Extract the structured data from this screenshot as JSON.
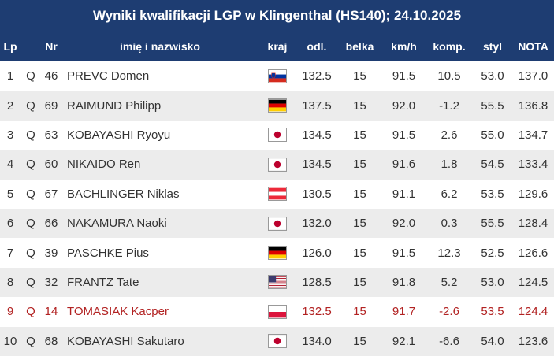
{
  "header": {
    "title": "Wyniki kwalifikacji LGP w Klingenthal (HS140); 24.10.2025"
  },
  "table": {
    "columns": [
      "Lp",
      "Nr",
      "imię i nazwisko",
      "kraj",
      "odl.",
      "belka",
      "km/h",
      "komp.",
      "styl",
      "NOTA"
    ],
    "rows": [
      [
        "1",
        "Q",
        "46",
        "PREVC Domen",
        "132.5",
        "15",
        "91.5",
        "10.5",
        "53.0",
        "137.0"
      ],
      [
        "2",
        "Q",
        "69",
        "RAIMUND Philipp",
        "137.5",
        "15",
        "92.0",
        "-1.2",
        "55.5",
        "136.8"
      ],
      [
        "3",
        "Q",
        "63",
        "KOBAYASHI Ryoyu",
        "134.5",
        "15",
        "91.5",
        "2.6",
        "55.0",
        "134.7"
      ],
      [
        "4",
        "Q",
        "60",
        "NIKAIDO Ren",
        "134.5",
        "15",
        "91.6",
        "1.8",
        "54.5",
        "133.4"
      ],
      [
        "5",
        "Q",
        "67",
        "BACHLINGER Niklas",
        "130.5",
        "15",
        "91.1",
        "6.2",
        "53.5",
        "129.6"
      ],
      [
        "6",
        "Q",
        "66",
        "NAKAMURA Naoki",
        "132.0",
        "15",
        "92.0",
        "0.3",
        "55.5",
        "128.4"
      ],
      [
        "7",
        "Q",
        "39",
        "PASCHKE Pius",
        "126.0",
        "15",
        "91.5",
        "12.3",
        "52.5",
        "126.6"
      ],
      [
        "8",
        "Q",
        "32",
        "FRANTZ Tate",
        "128.5",
        "15",
        "91.8",
        "5.2",
        "53.0",
        "124.5"
      ],
      [
        "9",
        "Q",
        "14",
        "TOMASIAK Kacper",
        "132.5",
        "15",
        "91.7",
        "-2.6",
        "53.5",
        "124.4"
      ],
      [
        "10",
        "Q",
        "68",
        "KOBAYASHI Sakutaro",
        "134.0",
        "15",
        "92.1",
        "-6.6",
        "54.0",
        "123.6"
      ]
    ]
  }
}
